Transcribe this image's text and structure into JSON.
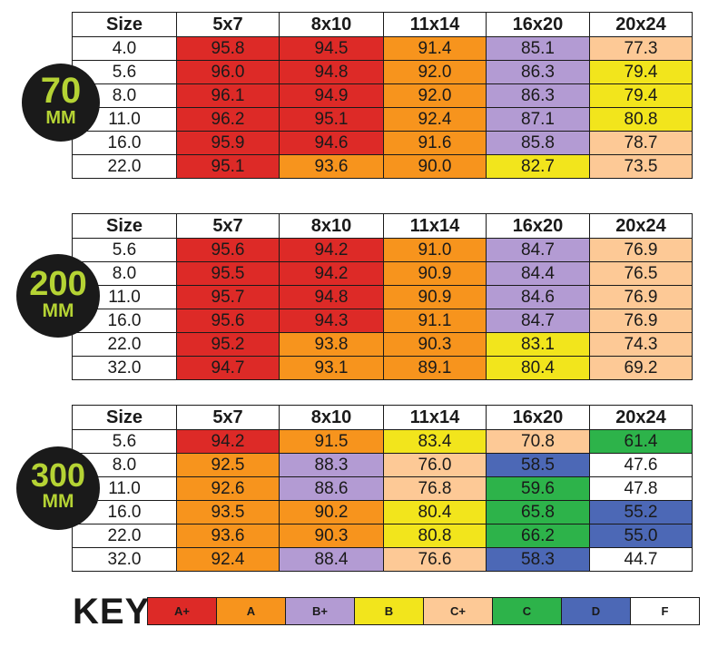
{
  "colors": {
    "A+": "#dd2a27",
    "A": "#f7941d",
    "B+": "#b39bd3",
    "B": "#f2e51c",
    "C+": "#fdc996",
    "C": "#2db34a",
    "D": "#4c68b6",
    "F": "#ffffff",
    "badge_bg": "#1a1a1a",
    "badge_text": "#b5d334"
  },
  "chart_data": [
    {
      "type": "table",
      "lens_number": "70",
      "lens_unit": "MM",
      "header_label": "Size",
      "columns": [
        "5x7",
        "8x10",
        "11x14",
        "16x20",
        "20x24"
      ],
      "rows": [
        {
          "size": "4.0",
          "values": [
            "95.8",
            "94.5",
            "91.4",
            "85.1",
            "77.3"
          ],
          "grades": [
            "A+",
            "A+",
            "A",
            "B+",
            "C+"
          ]
        },
        {
          "size": "5.6",
          "values": [
            "96.0",
            "94.8",
            "92.0",
            "86.3",
            "79.4"
          ],
          "grades": [
            "A+",
            "A+",
            "A",
            "B+",
            "B"
          ]
        },
        {
          "size": "8.0",
          "values": [
            "96.1",
            "94.9",
            "92.0",
            "86.3",
            "79.4"
          ],
          "grades": [
            "A+",
            "A+",
            "A",
            "B+",
            "B"
          ]
        },
        {
          "size": "11.0",
          "values": [
            "96.2",
            "95.1",
            "92.4",
            "87.1",
            "80.8"
          ],
          "grades": [
            "A+",
            "A+",
            "A",
            "B+",
            "B"
          ]
        },
        {
          "size": "16.0",
          "values": [
            "95.9",
            "94.6",
            "91.6",
            "85.8",
            "78.7"
          ],
          "grades": [
            "A+",
            "A+",
            "A",
            "B+",
            "C+"
          ]
        },
        {
          "size": "22.0",
          "values": [
            "95.1",
            "93.6",
            "90.0",
            "82.7",
            "73.5"
          ],
          "grades": [
            "A+",
            "A",
            "A",
            "B",
            "C+"
          ]
        }
      ]
    },
    {
      "type": "table",
      "lens_number": "200",
      "lens_unit": "MM",
      "header_label": "Size",
      "columns": [
        "5x7",
        "8x10",
        "11x14",
        "16x20",
        "20x24"
      ],
      "rows": [
        {
          "size": "5.6",
          "values": [
            "95.6",
            "94.2",
            "91.0",
            "84.7",
            "76.9"
          ],
          "grades": [
            "A+",
            "A+",
            "A",
            "B+",
            "C+"
          ]
        },
        {
          "size": "8.0",
          "values": [
            "95.5",
            "94.2",
            "90.9",
            "84.4",
            "76.5"
          ],
          "grades": [
            "A+",
            "A+",
            "A",
            "B+",
            "C+"
          ]
        },
        {
          "size": "11.0",
          "values": [
            "95.7",
            "94.8",
            "90.9",
            "84.6",
            "76.9"
          ],
          "grades": [
            "A+",
            "A+",
            "A",
            "B+",
            "C+"
          ]
        },
        {
          "size": "16.0",
          "values": [
            "95.6",
            "94.3",
            "91.1",
            "84.7",
            "76.9"
          ],
          "grades": [
            "A+",
            "A+",
            "A",
            "B+",
            "C+"
          ]
        },
        {
          "size": "22.0",
          "values": [
            "95.2",
            "93.8",
            "90.3",
            "83.1",
            "74.3"
          ],
          "grades": [
            "A+",
            "A",
            "A",
            "B",
            "C+"
          ]
        },
        {
          "size": "32.0",
          "values": [
            "94.7",
            "93.1",
            "89.1",
            "80.4",
            "69.2"
          ],
          "grades": [
            "A+",
            "A",
            "A",
            "B",
            "C+"
          ]
        }
      ]
    },
    {
      "type": "table",
      "lens_number": "300",
      "lens_unit": "MM",
      "header_label": "Size",
      "columns": [
        "5x7",
        "8x10",
        "11x14",
        "16x20",
        "20x24"
      ],
      "rows": [
        {
          "size": "5.6",
          "values": [
            "94.2",
            "91.5",
            "83.4",
            "70.8",
            "61.4"
          ],
          "grades": [
            "A+",
            "A",
            "B",
            "C+",
            "C"
          ]
        },
        {
          "size": "8.0",
          "values": [
            "92.5",
            "88.3",
            "76.0",
            "58.5",
            "47.6"
          ],
          "grades": [
            "A",
            "B+",
            "C+",
            "D",
            "F"
          ]
        },
        {
          "size": "11.0",
          "values": [
            "92.6",
            "88.6",
            "76.8",
            "59.6",
            "47.8"
          ],
          "grades": [
            "A",
            "B+",
            "C+",
            "C",
            "F"
          ]
        },
        {
          "size": "16.0",
          "values": [
            "93.5",
            "90.2",
            "80.4",
            "65.8",
            "55.2"
          ],
          "grades": [
            "A",
            "A",
            "B",
            "C",
            "D"
          ]
        },
        {
          "size": "22.0",
          "values": [
            "93.6",
            "90.3",
            "80.8",
            "66.2",
            "55.0"
          ],
          "grades": [
            "A",
            "A",
            "B",
            "C",
            "D"
          ]
        },
        {
          "size": "32.0",
          "values": [
            "92.4",
            "88.4",
            "76.6",
            "58.3",
            "44.7"
          ],
          "grades": [
            "A",
            "B+",
            "C+",
            "D",
            "F"
          ]
        }
      ]
    }
  ],
  "key": {
    "label": "KEY",
    "grades": [
      "A+",
      "A",
      "B+",
      "B",
      "C+",
      "C",
      "D",
      "F"
    ]
  }
}
